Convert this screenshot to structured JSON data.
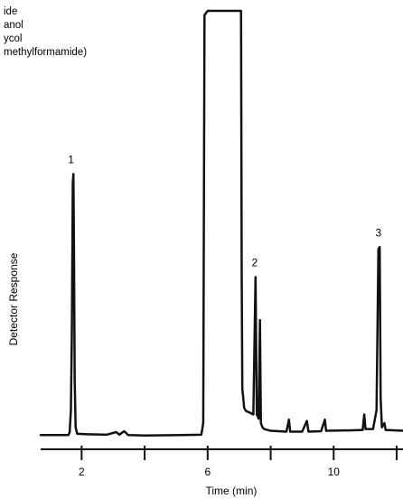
{
  "chart_data": {
    "type": "line",
    "title": "",
    "xlabel": "Time (min)",
    "ylabel": "Detector Response",
    "xlim": [
      0.7,
      12.2
    ],
    "ylim": [
      0,
      100
    ],
    "grid": false,
    "x_ticks": [
      2,
      4,
      6,
      8,
      10,
      12
    ],
    "x_tick_labels": [
      "2",
      "",
      "6",
      "",
      "10",
      ""
    ],
    "legend_entries": [
      "ide",
      "anol",
      "ycol",
      "methylformamide)"
    ],
    "annotations": [
      {
        "label": "1",
        "x": 1.72,
        "y": 62
      },
      {
        "label": "2",
        "x": 7.55,
        "y": 38
      },
      {
        "label": "3",
        "x": 11.48,
        "y": 45
      }
    ],
    "series": [
      {
        "values": [
          [
            0.7,
            1.2
          ],
          [
            1.2,
            1.2
          ],
          [
            1.58,
            1.2
          ],
          [
            1.62,
            1.8
          ],
          [
            1.66,
            7.0
          ],
          [
            1.69,
            25.0
          ],
          [
            1.72,
            60.0
          ],
          [
            1.74,
            62.0
          ],
          [
            1.76,
            42.0
          ],
          [
            1.78,
            14.0
          ],
          [
            1.81,
            3.0
          ],
          [
            1.86,
            1.5
          ],
          [
            2.2,
            1.4
          ],
          [
            2.8,
            1.3
          ],
          [
            3.1,
            1.9
          ],
          [
            3.2,
            1.3
          ],
          [
            3.35,
            2.1
          ],
          [
            3.48,
            1.2
          ],
          [
            4.0,
            1.1
          ],
          [
            5.2,
            1.2
          ],
          [
            5.8,
            1.3
          ],
          [
            5.86,
            4.0
          ],
          [
            5.9,
            99.0
          ],
          [
            6.0,
            100.0
          ],
          [
            6.7,
            100.0
          ],
          [
            7.06,
            100.0
          ],
          [
            7.08,
            40.0
          ],
          [
            7.1,
            12.0
          ],
          [
            7.16,
            7.5
          ],
          [
            7.22,
            6.8
          ],
          [
            7.35,
            6.4
          ],
          [
            7.45,
            6.0
          ],
          [
            7.52,
            38.0
          ],
          [
            7.56,
            6.0
          ],
          [
            7.62,
            5.0
          ],
          [
            7.66,
            28.0
          ],
          [
            7.69,
            4.0
          ],
          [
            7.74,
            3.0
          ],
          [
            7.8,
            2.6
          ],
          [
            8.0,
            2.2
          ],
          [
            8.5,
            2.0
          ],
          [
            8.58,
            4.8
          ],
          [
            8.62,
            2.0
          ],
          [
            9.0,
            2.0
          ],
          [
            9.15,
            4.5
          ],
          [
            9.2,
            2.0
          ],
          [
            9.6,
            2.1
          ],
          [
            9.72,
            4.8
          ],
          [
            9.76,
            2.2
          ],
          [
            10.5,
            2.3
          ],
          [
            10.92,
            2.4
          ],
          [
            10.97,
            6.0
          ],
          [
            11.01,
            2.6
          ],
          [
            11.25,
            2.6
          ],
          [
            11.36,
            7.0
          ],
          [
            11.42,
            44.5
          ],
          [
            11.46,
            45.0
          ],
          [
            11.49,
            10.0
          ],
          [
            11.53,
            3.0
          ],
          [
            11.61,
            4.0
          ],
          [
            11.65,
            2.4
          ],
          [
            12.2,
            2.2
          ]
        ]
      }
    ]
  }
}
